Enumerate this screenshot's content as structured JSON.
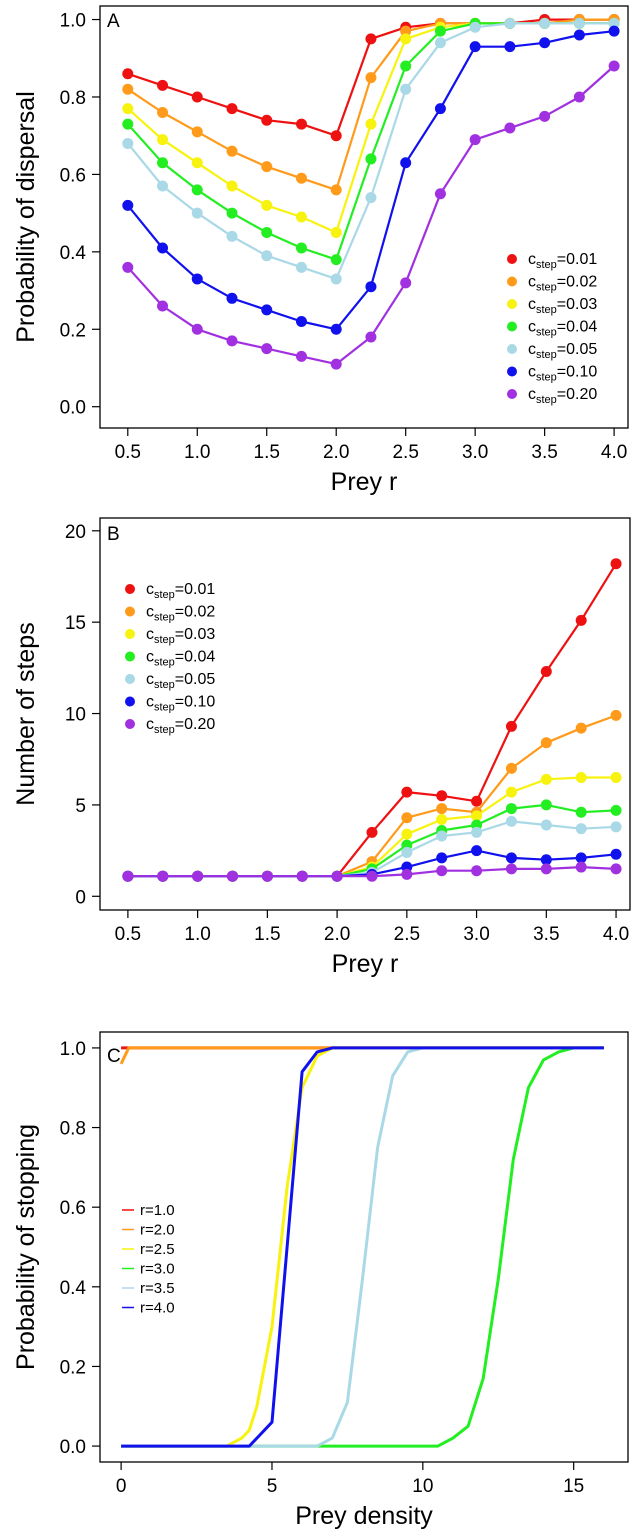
{
  "chart_data": [
    {
      "type": "line",
      "panel_label": "A",
      "xlabel": "Prey r",
      "ylabel": "Probability of dispersal",
      "xlim": [
        0.5,
        4.0
      ],
      "ylim": [
        0.0,
        1.0
      ],
      "xticks": [
        "0.5",
        "1.0",
        "1.5",
        "2.0",
        "2.5",
        "3.0",
        "3.5",
        "4.0"
      ],
      "yticks": [
        "0.0",
        "0.2",
        "0.4",
        "0.6",
        "0.8",
        "1.0"
      ],
      "legend_position": "bottom-right",
      "legend_prefix": "c",
      "legend_subscript": "step",
      "x": [
        0.5,
        0.75,
        1.0,
        1.25,
        1.5,
        1.75,
        2.0,
        2.25,
        2.5,
        2.75,
        3.0,
        3.25,
        3.5,
        3.75,
        4.0
      ],
      "series": [
        {
          "name": "=0.01",
          "color": "#ee1111",
          "values": [
            0.86,
            0.83,
            0.8,
            0.77,
            0.74,
            0.73,
            0.7,
            0.95,
            0.98,
            0.99,
            0.99,
            0.99,
            1.0,
            1.0,
            1.0
          ]
        },
        {
          "name": "=0.02",
          "color": "#ff9a1a",
          "values": [
            0.82,
            0.76,
            0.71,
            0.66,
            0.62,
            0.59,
            0.56,
            0.85,
            0.97,
            0.99,
            0.99,
            0.99,
            0.99,
            1.0,
            1.0
          ]
        },
        {
          "name": "=0.03",
          "color": "#f7f20e",
          "values": [
            0.77,
            0.69,
            0.63,
            0.57,
            0.52,
            0.49,
            0.45,
            0.73,
            0.95,
            0.98,
            0.99,
            0.99,
            0.99,
            0.99,
            0.99
          ]
        },
        {
          "name": "=0.04",
          "color": "#22ee22",
          "values": [
            0.73,
            0.63,
            0.56,
            0.5,
            0.45,
            0.41,
            0.38,
            0.64,
            0.88,
            0.97,
            0.99,
            0.99,
            0.99,
            0.99,
            0.99
          ]
        },
        {
          "name": "=0.05",
          "color": "#a9d8e6",
          "values": [
            0.68,
            0.57,
            0.5,
            0.44,
            0.39,
            0.36,
            0.33,
            0.54,
            0.82,
            0.94,
            0.98,
            0.99,
            0.99,
            0.99,
            0.99
          ]
        },
        {
          "name": "=0.10",
          "color": "#1111ee",
          "values": [
            0.52,
            0.41,
            0.33,
            0.28,
            0.25,
            0.22,
            0.2,
            0.31,
            0.63,
            0.77,
            0.93,
            0.93,
            0.94,
            0.96,
            0.97
          ]
        },
        {
          "name": "=0.20",
          "color": "#a030e0",
          "values": [
            0.36,
            0.26,
            0.2,
            0.17,
            0.15,
            0.13,
            0.11,
            0.18,
            0.32,
            0.55,
            0.69,
            0.72,
            0.75,
            0.8,
            0.88
          ]
        }
      ]
    },
    {
      "type": "line",
      "panel_label": "B",
      "xlabel": "Prey r",
      "ylabel": "Number of steps",
      "xlim": [
        0.5,
        4.0
      ],
      "ylim": [
        0,
        20
      ],
      "xticks": [
        "0.5",
        "1.0",
        "1.5",
        "2.0",
        "2.5",
        "3.0",
        "3.5",
        "4.0"
      ],
      "yticks": [
        "0",
        "5",
        "10",
        "15",
        "20"
      ],
      "legend_position": "top-left",
      "legend_prefix": "c",
      "legend_subscript": "step",
      "x": [
        0.5,
        0.75,
        1.0,
        1.25,
        1.5,
        1.75,
        2.0,
        2.25,
        2.5,
        2.75,
        3.0,
        3.25,
        3.5,
        3.75,
        4.0
      ],
      "series": [
        {
          "name": "=0.01",
          "color": "#ee1111",
          "values": [
            1.1,
            1.1,
            1.1,
            1.1,
            1.1,
            1.1,
            1.1,
            3.5,
            5.7,
            5.5,
            5.2,
            9.3,
            12.3,
            15.1,
            18.2
          ]
        },
        {
          "name": "=0.02",
          "color": "#ff9a1a",
          "values": [
            1.1,
            1.1,
            1.1,
            1.1,
            1.1,
            1.1,
            1.1,
            1.9,
            4.3,
            4.8,
            4.6,
            7.0,
            8.4,
            9.2,
            9.9
          ]
        },
        {
          "name": "=0.03",
          "color": "#f7f20e",
          "values": [
            1.1,
            1.1,
            1.1,
            1.1,
            1.1,
            1.1,
            1.1,
            1.6,
            3.4,
            4.2,
            4.4,
            5.7,
            6.4,
            6.5,
            6.5
          ]
        },
        {
          "name": "=0.04",
          "color": "#22ee22",
          "values": [
            1.1,
            1.1,
            1.1,
            1.1,
            1.1,
            1.1,
            1.1,
            1.5,
            2.8,
            3.6,
            3.9,
            4.8,
            5.0,
            4.6,
            4.7
          ]
        },
        {
          "name": "=0.05",
          "color": "#a9d8e6",
          "values": [
            1.1,
            1.1,
            1.1,
            1.1,
            1.1,
            1.1,
            1.1,
            1.3,
            2.4,
            3.3,
            3.5,
            4.1,
            3.9,
            3.7,
            3.8
          ]
        },
        {
          "name": "=0.10",
          "color": "#1111ee",
          "values": [
            1.1,
            1.1,
            1.1,
            1.1,
            1.1,
            1.1,
            1.1,
            1.2,
            1.6,
            2.1,
            2.5,
            2.1,
            2.0,
            2.1,
            2.3
          ]
        },
        {
          "name": "=0.20",
          "color": "#a030e0",
          "values": [
            1.1,
            1.1,
            1.1,
            1.1,
            1.1,
            1.1,
            1.1,
            1.1,
            1.2,
            1.4,
            1.4,
            1.5,
            1.5,
            1.6,
            1.5
          ]
        }
      ]
    },
    {
      "type": "line",
      "panel_label": "C",
      "xlabel": "Prey density",
      "ylabel": "Probability of stopping",
      "xlim": [
        0,
        16
      ],
      "ylim": [
        0.0,
        1.0
      ],
      "xticks": [
        "0",
        "5",
        "10",
        "15"
      ],
      "yticks": [
        "0.0",
        "0.2",
        "0.4",
        "0.6",
        "0.8",
        "1.0"
      ],
      "legend_position": "center-left",
      "series": [
        {
          "name": "r=1.0",
          "color": "#ee1111",
          "x": [
            0,
            0.2,
            16
          ],
          "values": [
            1.0,
            1.0,
            1.0
          ]
        },
        {
          "name": "r=2.0",
          "color": "#ff9a1a",
          "x": [
            0,
            0.25,
            16
          ],
          "values": [
            0.96,
            1.0,
            1.0
          ]
        },
        {
          "name": "r=2.5",
          "color": "#f7f20e",
          "x": [
            0,
            3.5,
            4.0,
            4.25,
            4.5,
            5.0,
            5.5,
            6.0,
            6.5,
            7.0,
            16
          ],
          "values": [
            0,
            0,
            0.02,
            0.04,
            0.1,
            0.3,
            0.65,
            0.9,
            0.98,
            1.0,
            1.0
          ]
        },
        {
          "name": "r=3.0",
          "color": "#22ee22",
          "x": [
            0,
            10.5,
            11.0,
            11.5,
            12.0,
            12.5,
            13.0,
            13.5,
            14.0,
            14.5,
            15.0,
            16
          ],
          "values": [
            0,
            0,
            0.02,
            0.05,
            0.17,
            0.42,
            0.72,
            0.9,
            0.97,
            0.99,
            1.0,
            1.0
          ]
        },
        {
          "name": "r=3.5",
          "color": "#a9d8e6",
          "x": [
            0,
            6.5,
            7.0,
            7.5,
            8.0,
            8.5,
            9.0,
            9.5,
            10.0,
            16
          ],
          "values": [
            0,
            0,
            0.02,
            0.11,
            0.42,
            0.75,
            0.93,
            0.99,
            1.0,
            1.0
          ]
        },
        {
          "name": "r=4.0",
          "color": "#1111ee",
          "x": [
            0,
            4.25,
            4.5,
            5.0,
            5.5,
            6.0,
            6.5,
            7.0,
            16
          ],
          "values": [
            0,
            0,
            0.02,
            0.06,
            0.5,
            0.94,
            0.99,
            1.0,
            1.0
          ]
        }
      ]
    }
  ]
}
